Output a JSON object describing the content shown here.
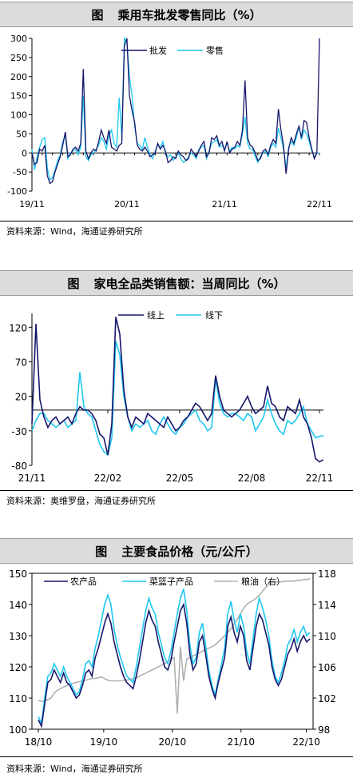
{
  "colors": {
    "dark": "#16166b",
    "cyan": "#1ec8f0",
    "gray": "#b0b0b0"
  },
  "panels": [
    {
      "fig": "图",
      "title": "乘用车批发零售同比（%）",
      "source": "资料来源：Wind，海通证券研究所"
    },
    {
      "fig": "图",
      "title": "家电全品类销售额：当周同比（%）",
      "source": "资料来源：奥维罗盘，海通证券研究所"
    },
    {
      "fig": "图",
      "title": "主要食品价格（元/公斤）",
      "source": "资料来源：Wind，海通证券研究所"
    }
  ],
  "chart_data": [
    {
      "type": "line",
      "x_ticks": [
        "19/11",
        "20/11",
        "21/11",
        "22/11"
      ],
      "y_ticks": [
        -100,
        -50,
        0,
        50,
        100,
        150,
        200,
        250,
        300
      ],
      "ylim": [
        -100,
        300
      ],
      "legend_position": "top-right",
      "series": [
        {
          "name": "批发",
          "color": "#16166b",
          "values": [
            0,
            -30,
            -25,
            10,
            5,
            20,
            -60,
            -80,
            -75,
            -50,
            -30,
            -10,
            20,
            55,
            -10,
            -5,
            10,
            15,
            5,
            25,
            220,
            5,
            -15,
            0,
            10,
            5,
            30,
            60,
            40,
            25,
            60,
            15,
            10,
            5,
            20,
            25,
            280,
            300,
            150,
            110,
            80,
            20,
            10,
            5,
            15,
            5,
            -10,
            -5,
            0,
            25,
            10,
            20,
            5,
            -25,
            -20,
            -10,
            -15,
            5,
            -5,
            -10,
            -20,
            -15,
            10,
            0,
            -10,
            5,
            20,
            30,
            -10,
            0,
            40,
            35,
            45,
            20,
            30,
            5,
            30,
            0,
            10,
            15,
            30,
            20,
            60,
            190,
            40,
            20,
            15,
            0,
            -20,
            -15,
            5,
            10,
            -5,
            20,
            35,
            25,
            115,
            60,
            20,
            -55,
            10,
            40,
            25,
            50,
            70,
            40,
            85,
            80,
            40,
            10,
            -15,
            0,
            300
          ]
        },
        {
          "name": "零售",
          "color": "#1ec8f0",
          "values": [
            10,
            -45,
            -10,
            15,
            35,
            40,
            -40,
            -70,
            -65,
            -45,
            -20,
            -5,
            30,
            45,
            -15,
            0,
            5,
            10,
            -5,
            15,
            150,
            -10,
            -20,
            -5,
            0,
            10,
            20,
            40,
            30,
            10,
            45,
            60,
            25,
            15,
            145,
            40,
            300,
            290,
            200,
            150,
            70,
            25,
            20,
            10,
            40,
            15,
            -5,
            -15,
            5,
            20,
            15,
            30,
            0,
            -10,
            -5,
            -20,
            -10,
            0,
            -15,
            -25,
            -20,
            -10,
            0,
            -5,
            -15,
            10,
            15,
            20,
            -15,
            5,
            25,
            30,
            35,
            15,
            20,
            10,
            25,
            5,
            15,
            10,
            20,
            15,
            50,
            95,
            25,
            10,
            10,
            -10,
            -25,
            -10,
            0,
            5,
            -10,
            15,
            25,
            15,
            65,
            40,
            10,
            -40,
            15,
            30,
            20,
            40,
            70,
            35,
            60,
            50,
            30,
            5,
            -10,
            0,
            0
          ]
        }
      ]
    },
    {
      "type": "line",
      "x_ticks": [
        "21/11",
        "22/02",
        "22/05",
        "22/08",
        "22/11"
      ],
      "y_ticks": [
        -80,
        -30,
        20,
        70,
        120
      ],
      "ylim": [
        -80,
        140
      ],
      "legend_position": "top-right",
      "series": [
        {
          "name": "线上",
          "color": "#16166b",
          "values": [
            -20,
            125,
            15,
            -10,
            -25,
            -15,
            -10,
            -20,
            -15,
            -10,
            -20,
            -5,
            5,
            0,
            0,
            -5,
            -15,
            -35,
            -40,
            -65,
            -20,
            135,
            110,
            30,
            -10,
            -25,
            -10,
            -15,
            -20,
            -5,
            -10,
            -15,
            -20,
            -25,
            -10,
            -20,
            -30,
            -25,
            -15,
            -10,
            0,
            10,
            5,
            -5,
            -15,
            -5,
            50,
            20,
            0,
            -5,
            -10,
            -5,
            0,
            10,
            20,
            5,
            -5,
            0,
            5,
            35,
            10,
            5,
            -10,
            -15,
            5,
            0,
            -5,
            15,
            -10,
            -20,
            -40,
            -70,
            -75,
            -72
          ]
        },
        {
          "name": "线下",
          "color": "#1ec8f0",
          "values": [
            -30,
            -15,
            -5,
            -5,
            -15,
            -20,
            -25,
            -20,
            -15,
            -25,
            -20,
            -15,
            55,
            5,
            -5,
            -10,
            -30,
            -50,
            -60,
            -65,
            -40,
            100,
            80,
            20,
            -10,
            -30,
            -20,
            -25,
            -20,
            -15,
            -30,
            -35,
            -20,
            -10,
            -20,
            -30,
            -35,
            -25,
            -20,
            -10,
            -5,
            0,
            -15,
            -20,
            -30,
            -25,
            45,
            10,
            -5,
            -10,
            -5,
            -5,
            -10,
            -15,
            -5,
            -10,
            -30,
            -20,
            -10,
            15,
            -5,
            -20,
            -30,
            -35,
            -15,
            -20,
            -15,
            -5,
            5,
            -20,
            -30,
            -40,
            -38,
            -37
          ]
        }
      ]
    },
    {
      "type": "line",
      "x_ticks": [
        "18/10",
        "19/10",
        "20/10",
        "21/10",
        "22/10"
      ],
      "y_ticks_left": [
        100,
        110,
        120,
        130,
        140,
        150
      ],
      "y_ticks_right": [
        98,
        102,
        106,
        110,
        114,
        118
      ],
      "ylim_left": [
        100,
        150
      ],
      "ylim_right": [
        98,
        118
      ],
      "legend_position": "top",
      "series": [
        {
          "name": "农产品",
          "color": "#16166b",
          "axis": "left",
          "values": [
            103,
            101,
            108,
            115,
            116,
            119,
            117,
            115,
            118,
            115,
            114,
            112,
            110,
            111,
            114,
            118,
            119,
            117,
            123,
            126,
            130,
            134,
            137,
            134,
            128,
            124,
            120,
            117,
            115,
            114,
            113,
            117,
            122,
            128,
            134,
            138,
            135,
            133,
            128,
            124,
            120,
            119,
            122,
            128,
            133,
            138,
            140,
            134,
            124,
            119,
            121,
            128,
            130,
            124,
            117,
            113,
            110,
            115,
            119,
            123,
            133,
            136,
            131,
            128,
            133,
            130,
            122,
            119,
            126,
            133,
            137,
            135,
            131,
            127,
            120,
            116,
            114,
            116,
            120,
            124,
            126,
            129,
            125,
            128,
            130,
            128,
            129
          ]
        },
        {
          "name": "菜篮子产品",
          "color": "#1ec8f0",
          "axis": "left",
          "values": [
            104,
            102,
            110,
            117,
            118,
            121,
            119,
            117,
            120,
            117,
            115,
            113,
            111,
            112,
            116,
            121,
            122,
            120,
            126,
            130,
            135,
            140,
            143,
            140,
            132,
            127,
            123,
            120,
            117,
            116,
            115,
            120,
            126,
            132,
            138,
            142,
            139,
            137,
            131,
            127,
            123,
            121,
            125,
            131,
            137,
            142,
            145,
            138,
            127,
            121,
            123,
            131,
            134,
            127,
            119,
            114,
            111,
            116,
            121,
            126,
            137,
            141,
            135,
            131,
            137,
            133,
            125,
            121,
            129,
            137,
            142,
            139,
            135,
            130,
            122,
            117,
            115,
            118,
            122,
            127,
            129,
            132,
            128,
            131,
            133,
            130,
            131
          ]
        },
        {
          "name": "粮油（右）",
          "color": "#b0b0b0",
          "axis": "right",
          "values": [
            101.7,
            101.6,
            101.6,
            101.8,
            102.0,
            102.6,
            103.0,
            103.2,
            103.4,
            103.6,
            103.8,
            103.9,
            104.0,
            104.1,
            104.2,
            104.3,
            104.4,
            104.5,
            104.5,
            104.6,
            104.7,
            104.5,
            104.3,
            104.2,
            104.2,
            104.2,
            104.2,
            104.3,
            104.3,
            104.4,
            104.5,
            104.6,
            104.8,
            105.0,
            105.2,
            105.4,
            105.6,
            105.8,
            106.0,
            106.2,
            106.4,
            106.7,
            107.0,
            107.2,
            100.0,
            108.6,
            104.2,
            107.0,
            107.2,
            107.4,
            107.6,
            107.8,
            108.0,
            108.2,
            108.4,
            108.6,
            108.8,
            109.2,
            109.6,
            110.0,
            110.4,
            110.9,
            111.5,
            112.1,
            112.8,
            113.5,
            114.0,
            114.3,
            114.5,
            114.8,
            115.2,
            115.7,
            116.2,
            116.6,
            116.8,
            116.9,
            116.9,
            116.9,
            117.0,
            117.0,
            117.0,
            117.0,
            117.1,
            117.1,
            117.2,
            117.2,
            117.3
          ]
        }
      ]
    }
  ]
}
